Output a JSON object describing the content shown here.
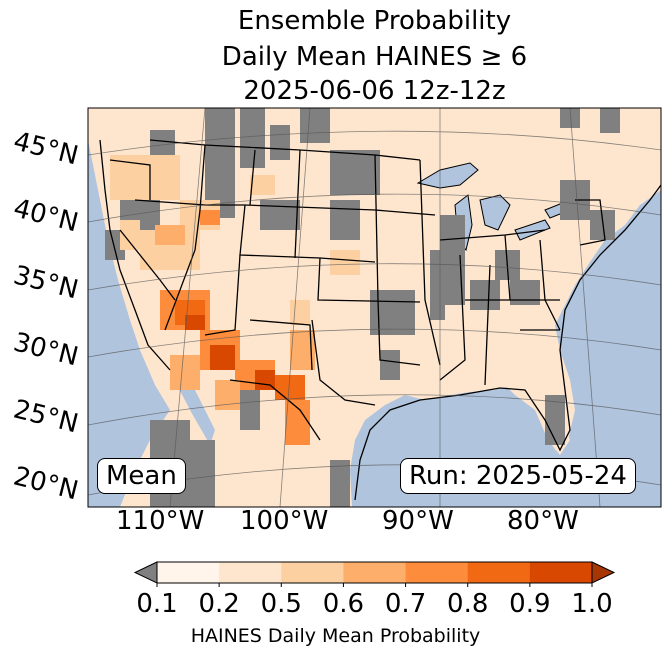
{
  "title": {
    "line1": "Ensemble Probability",
    "line2": "Daily Mean HAINES ≥ 6",
    "line3": "2025-06-06 12z-12z"
  },
  "lat_labels": [
    "45°N",
    "40°N",
    "35°N",
    "30°N",
    "25°N",
    "20°N"
  ],
  "lon_labels": [
    "110°W",
    "100°W",
    "90°W",
    "80°W"
  ],
  "stat_label": "Mean",
  "run_label": "Run: 2025-05-24",
  "colorbar": {
    "ticks": [
      "0.1",
      "0.2",
      "0.5",
      "0.6",
      "0.7",
      "0.8",
      "0.9",
      "1.0"
    ],
    "colors": [
      "#fff5eb",
      "#fee6ce",
      "#fdd0a2",
      "#fdae6b",
      "#fd8d3c",
      "#f16913",
      "#d94801",
      "#a63603"
    ],
    "under_color": "#808080",
    "label": "HAINES Daily Mean Probability"
  },
  "colors": {
    "ocean": "#b0c4de",
    "land_low": "#fee6ce",
    "no_data_gray": "#808080"
  }
}
